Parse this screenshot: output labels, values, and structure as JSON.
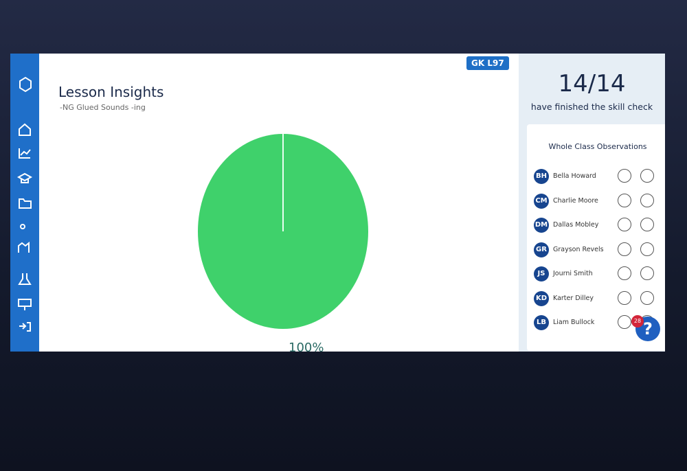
{
  "header": {
    "badge": "GK L97",
    "title": "Lesson Insights",
    "subtitle": "-NG Glued Sounds -ing"
  },
  "chart": {
    "type": "pie",
    "values": [
      100
    ],
    "value_labels": [
      "100%"
    ],
    "color": "#3fd16b"
  },
  "summary": {
    "count": "14/14",
    "caption": "have finished the skill check"
  },
  "observations": {
    "title": "Whole Class Observations",
    "students": [
      {
        "initials": "BH",
        "name": "Bella Howard"
      },
      {
        "initials": "CM",
        "name": "Charlie Moore"
      },
      {
        "initials": "DM",
        "name": "Dallas Mobley"
      },
      {
        "initials": "GR",
        "name": "Grayson Revels"
      },
      {
        "initials": "JS",
        "name": "Journi Smith"
      },
      {
        "initials": "KD",
        "name": "Karter Dilley"
      },
      {
        "initials": "LB",
        "name": "Liam Bullock"
      }
    ]
  },
  "help": {
    "badge": "28",
    "icon": "?"
  }
}
